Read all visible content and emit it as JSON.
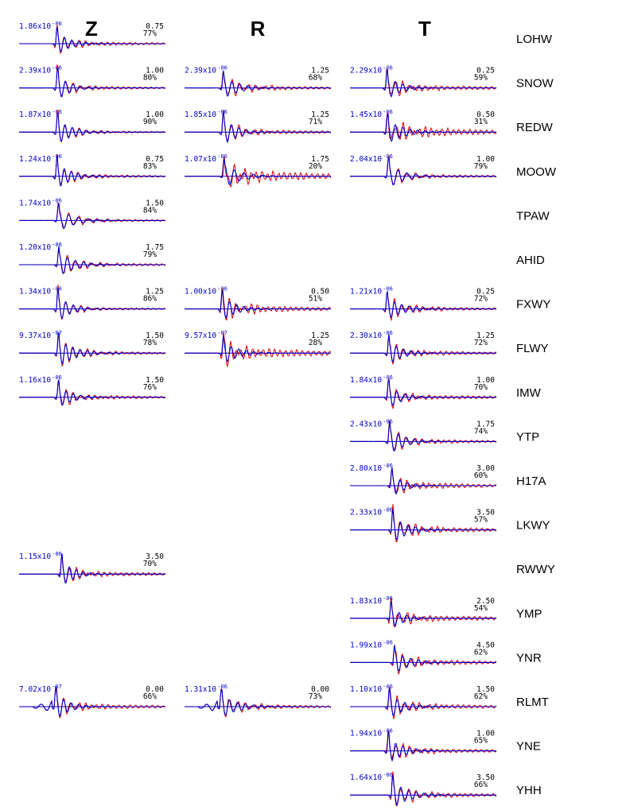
{
  "chart_data": {
    "type": "line",
    "components": [
      "Z",
      "R",
      "T"
    ],
    "colors": {
      "observed": "#dd0000",
      "synthetic": "#0000cc",
      "text": "#000000"
    },
    "stations": [
      {
        "name": "LOHW",
        "traces": {
          "Z": {
            "amp": "1.86x10",
            "exp": "-06",
            "shift": "0.75",
            "cc": "77%"
          }
        }
      },
      {
        "name": "SNOW",
        "traces": {
          "Z": {
            "amp": "2.39x10",
            "exp": "-06",
            "shift": "1.00",
            "cc": "80%"
          },
          "R": {
            "amp": "2.39x10",
            "exp": "-06",
            "shift": "1.25",
            "cc": "68%"
          },
          "T": {
            "amp": "2.29x10",
            "exp": "-06",
            "shift": "0.25",
            "cc": "59%"
          }
        }
      },
      {
        "name": "REDW",
        "traces": {
          "Z": {
            "amp": "1.87x10",
            "exp": "-06",
            "shift": "1.00",
            "cc": "90%"
          },
          "R": {
            "amp": "1.85x10",
            "exp": "-06",
            "shift": "1.25",
            "cc": "71%"
          },
          "T": {
            "amp": "1.45x10",
            "exp": "-06",
            "shift": "0.50",
            "cc": "31%"
          }
        }
      },
      {
        "name": "MOOW",
        "traces": {
          "Z": {
            "amp": "1.24x10",
            "exp": "-06",
            "shift": "0.75",
            "cc": "83%"
          },
          "R": {
            "amp": "1.07x10",
            "exp": "-06",
            "shift": "1.75",
            "cc": "20%"
          },
          "T": {
            "amp": "2.04x10",
            "exp": "-06",
            "shift": "1.00",
            "cc": "79%"
          }
        }
      },
      {
        "name": "TPAW",
        "traces": {
          "Z": {
            "amp": "1.74x10",
            "exp": "-06",
            "shift": "1.50",
            "cc": "84%"
          }
        }
      },
      {
        "name": "AHID",
        "traces": {
          "Z": {
            "amp": "1.20x10",
            "exp": "-06",
            "shift": "1.75",
            "cc": "79%"
          }
        }
      },
      {
        "name": "FXWY",
        "traces": {
          "Z": {
            "amp": "1.34x10",
            "exp": "-06",
            "shift": "1.25",
            "cc": "86%"
          },
          "R": {
            "amp": "1.00x10",
            "exp": "-06",
            "shift": "0.50",
            "cc": "51%"
          },
          "T": {
            "amp": "1.21x10",
            "exp": "-06",
            "shift": "0.25",
            "cc": "72%"
          }
        }
      },
      {
        "name": "FLWY",
        "traces": {
          "Z": {
            "amp": "9.37x10",
            "exp": "-07",
            "shift": "1.50",
            "cc": "78%"
          },
          "R": {
            "amp": "9.57x10",
            "exp": "-07",
            "shift": "1.25",
            "cc": "28%"
          },
          "T": {
            "amp": "2.30x10",
            "exp": "-06",
            "shift": "1.25",
            "cc": "72%"
          }
        }
      },
      {
        "name": "IMW",
        "traces": {
          "Z": {
            "amp": "1.16x10",
            "exp": "-06",
            "shift": "1.50",
            "cc": "76%"
          },
          "T": {
            "amp": "1.84x10",
            "exp": "-06",
            "shift": "1.00",
            "cc": "70%"
          }
        }
      },
      {
        "name": "YTP",
        "traces": {
          "T": {
            "amp": "2.43x10",
            "exp": "-06",
            "shift": "1.75",
            "cc": "74%"
          }
        }
      },
      {
        "name": "H17A",
        "traces": {
          "T": {
            "amp": "2.80x10",
            "exp": "-06",
            "shift": "3.00",
            "cc": "60%"
          }
        }
      },
      {
        "name": "LKWY",
        "traces": {
          "T": {
            "amp": "2.33x10",
            "exp": "-06",
            "shift": "3.50",
            "cc": "57%"
          }
        }
      },
      {
        "name": "RWWY",
        "traces": {
          "Z": {
            "amp": "1.15x10",
            "exp": "-06",
            "shift": "3.50",
            "cc": "70%"
          }
        }
      },
      {
        "name": "YMP",
        "traces": {
          "T": {
            "amp": "1.83x10",
            "exp": "-06",
            "shift": "2.50",
            "cc": "54%"
          }
        }
      },
      {
        "name": "YNR",
        "traces": {
          "T": {
            "amp": "1.99x10",
            "exp": "-06",
            "shift": "4.50",
            "cc": "62%"
          }
        }
      },
      {
        "name": "RLMT",
        "traces": {
          "Z": {
            "amp": "7.02x10",
            "exp": "-07",
            "shift": "0.00",
            "cc": "66%"
          },
          "R": {
            "amp": "1.31x10",
            "exp": "-06",
            "shift": "0.00",
            "cc": "73%"
          },
          "T": {
            "amp": "1.10x10",
            "exp": "-06",
            "shift": "1.50",
            "cc": "62%"
          }
        }
      },
      {
        "name": "YNE",
        "traces": {
          "T": {
            "amp": "1.94x10",
            "exp": "-06",
            "shift": "1.00",
            "cc": "65%"
          }
        }
      },
      {
        "name": "YHH",
        "traces": {
          "T": {
            "amp": "1.64x10",
            "exp": "-06",
            "shift": "3.50",
            "cc": "66%"
          }
        }
      }
    ]
  }
}
